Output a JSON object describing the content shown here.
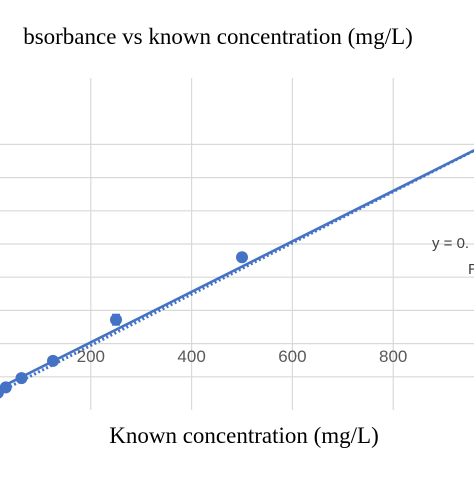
{
  "chart_data": {
    "type": "scatter",
    "title": "bsorbance vs known concentration (mg/L)",
    "xlabel": "Known concentration (mg/L)",
    "ylabel": "",
    "xlim": [
      0,
      1000
    ],
    "ylim": [
      0,
      2.5
    ],
    "x_ticks": [
      200,
      400,
      600,
      800
    ],
    "y_gridlines": [
      0.25,
      0.5,
      0.75,
      1.0,
      1.25,
      1.5,
      1.75,
      2.0
    ],
    "grid": true,
    "series": [
      {
        "points": [
          {
            "x": 7.8,
            "y": 0.115,
            "err": 0.006
          },
          {
            "x": 15.6,
            "y": 0.13,
            "err": 0.006
          },
          {
            "x": 31.3,
            "y": 0.17,
            "err": 0.006
          },
          {
            "x": 62.5,
            "y": 0.24,
            "err": 0.008
          },
          {
            "x": 125,
            "y": 0.37,
            "err": 0.01
          },
          {
            "x": 250,
            "y": 0.68,
            "err": 0.04
          },
          {
            "x": 500,
            "y": 1.15,
            "err": 0.01
          }
        ],
        "color": "#4472c4"
      }
    ],
    "fit_line": {
      "from": [
        0,
        0.13
      ],
      "to": [
        1000,
        2.03
      ],
      "style": "solid",
      "color": "#4472c4"
    },
    "trendline": {
      "from": [
        0,
        0.1
      ],
      "to": [
        1000,
        2.03
      ],
      "style": "dotted",
      "color": "#4472c4"
    },
    "annotations": [
      "y = 0.",
      "R"
    ]
  },
  "colors": {
    "series": "#4472c4",
    "grid": "#d9d9d9",
    "tick": "#595959"
  }
}
